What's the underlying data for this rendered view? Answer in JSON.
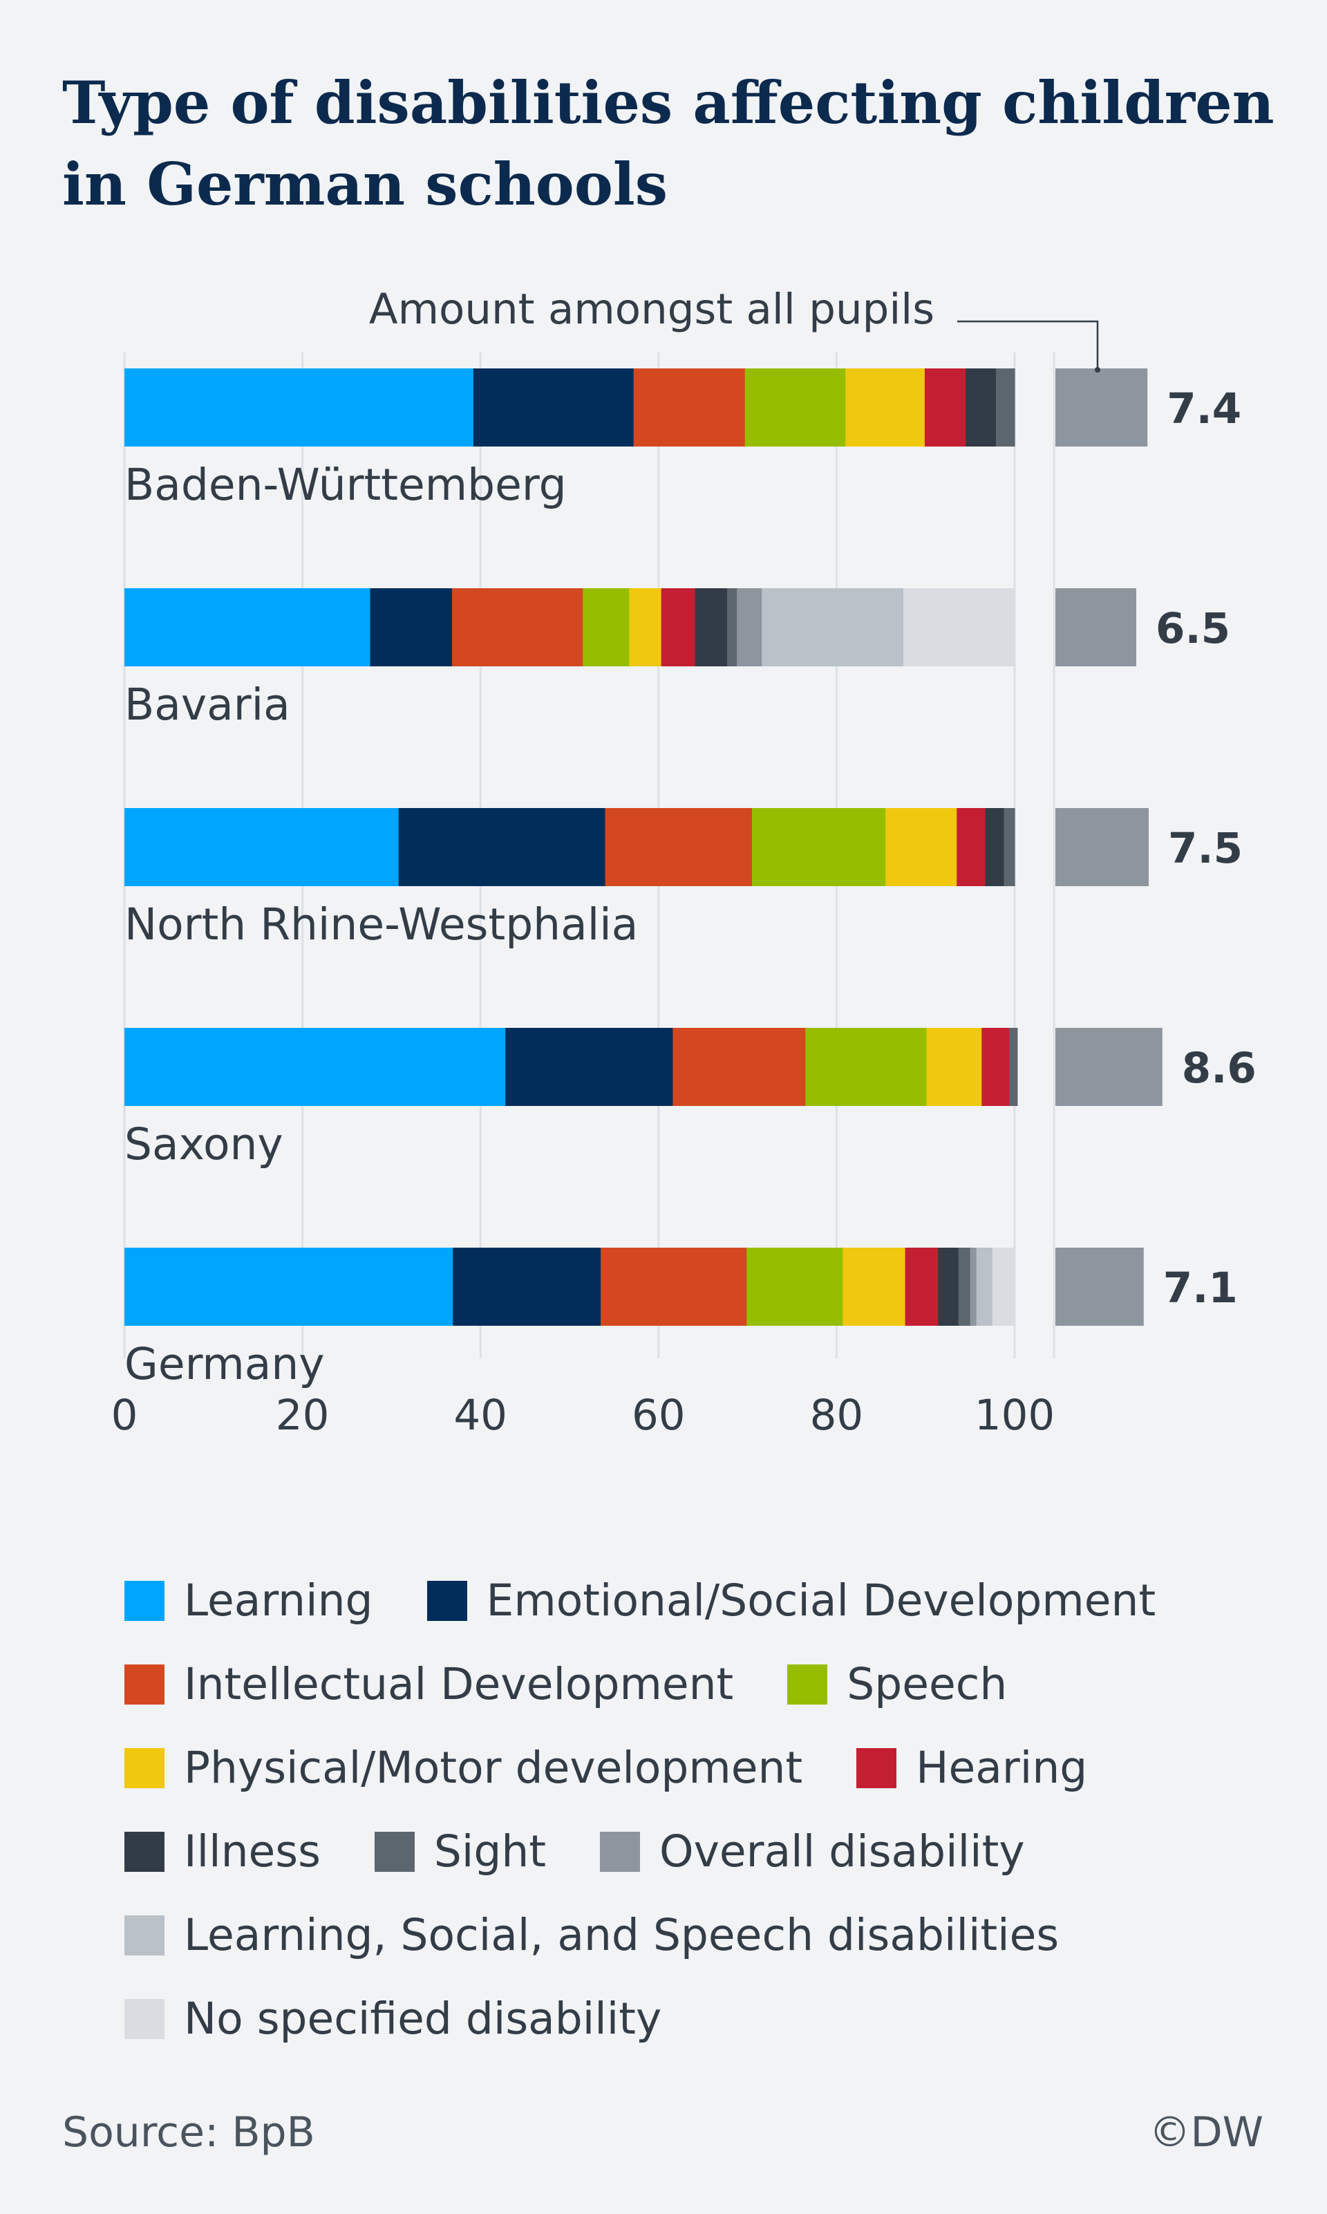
{
  "title": "Type of disabilities affecting children in German schools",
  "source": "Source: BpB",
  "credit": "©DW",
  "chart_data": {
    "type": "bar",
    "orientation": "horizontal",
    "stacked": true,
    "title": "Type of disabilities affecting children in German schools",
    "xlim": [
      0,
      100
    ],
    "xticks": [
      0,
      20,
      40,
      60,
      80,
      100
    ],
    "grid": true,
    "categories": [
      "Baden-Württemberg",
      "Bavaria",
      "North Rhine-Westphalia",
      "Saxony",
      "Germany"
    ],
    "series": [
      {
        "name": "Learning",
        "color": "#00a5ff",
        "values": [
          39.2,
          27.6,
          30.8,
          42.8,
          36.9
        ]
      },
      {
        "name": "Emotional/Social Development",
        "color": "#002d5a",
        "values": [
          18.0,
          9.2,
          23.2,
          18.8,
          16.6
        ]
      },
      {
        "name": "Intellectual Development",
        "color": "#d44820",
        "values": [
          12.5,
          14.7,
          16.5,
          14.9,
          16.4
        ]
      },
      {
        "name": "Speech",
        "color": "#96be00",
        "values": [
          11.3,
          5.2,
          15.0,
          13.6,
          10.8
        ]
      },
      {
        "name": "Physical/Motor development",
        "color": "#f0c80f",
        "values": [
          8.9,
          3.6,
          8.0,
          6.2,
          7.0
        ]
      },
      {
        "name": "Hearing",
        "color": "#c41e32",
        "values": [
          4.6,
          3.8,
          3.2,
          3.1,
          3.7
        ]
      },
      {
        "name": "Illness",
        "color": "#323c46",
        "values": [
          3.4,
          3.6,
          2.1,
          0.0,
          2.3
        ]
      },
      {
        "name": "Sight",
        "color": "#5c666f",
        "values": [
          2.1,
          1.1,
          1.2,
          0.9,
          1.3
        ]
      },
      {
        "name": "Overall disability",
        "color": "#8d959f",
        "values": [
          0.0,
          2.8,
          0.0,
          0.0,
          0.7
        ]
      },
      {
        "name": "Learning, Social, and Speech disabilities",
        "color": "#bac1c8",
        "values": [
          0.0,
          15.9,
          0.0,
          0.0,
          1.8
        ]
      },
      {
        "name": "No specified disability",
        "color": "#d9dde1",
        "values": [
          0.0,
          12.5,
          0.0,
          0.0,
          2.5
        ]
      }
    ],
    "side_bar": {
      "label": "Amount amongst all pupils",
      "color": "#8d959f",
      "values": [
        7.4,
        6.5,
        7.5,
        8.6,
        7.1
      ],
      "value_labels": [
        "7.4",
        "6.5",
        "7.5",
        "8.6",
        "7.1"
      ]
    }
  }
}
